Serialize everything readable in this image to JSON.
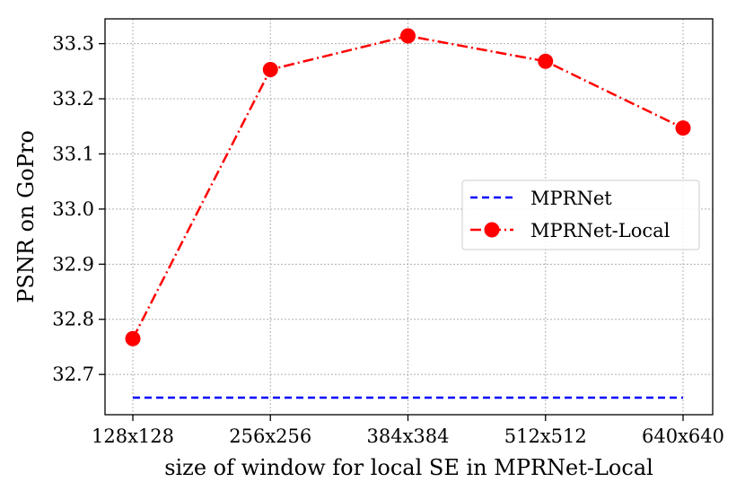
{
  "chart_data": {
    "type": "line",
    "title": "",
    "xlabel": "size of window for local SE in MPRNet-Local",
    "ylabel": "PSNR on GoPro",
    "categories": [
      "128x128",
      "256x256",
      "384x384",
      "512x512",
      "640x640"
    ],
    "y_ticks": [
      "32.7",
      "32.8",
      "32.9",
      "33.0",
      "33.1",
      "33.2",
      "33.3"
    ],
    "ylim": [
      32.627,
      33.345
    ],
    "grid": true,
    "legend_position": "center-right",
    "series": [
      {
        "name": "MPRNet",
        "values": [
          32.658,
          32.658,
          32.658,
          32.658,
          32.658
        ],
        "color": "#0000ff",
        "linestyle": "dashed",
        "marker": "none"
      },
      {
        "name": "MPRNet-Local",
        "values": [
          32.765,
          33.253,
          33.314,
          33.268,
          33.147
        ],
        "color": "#ff0000",
        "linestyle": "dashdot",
        "marker": "circle"
      }
    ]
  }
}
